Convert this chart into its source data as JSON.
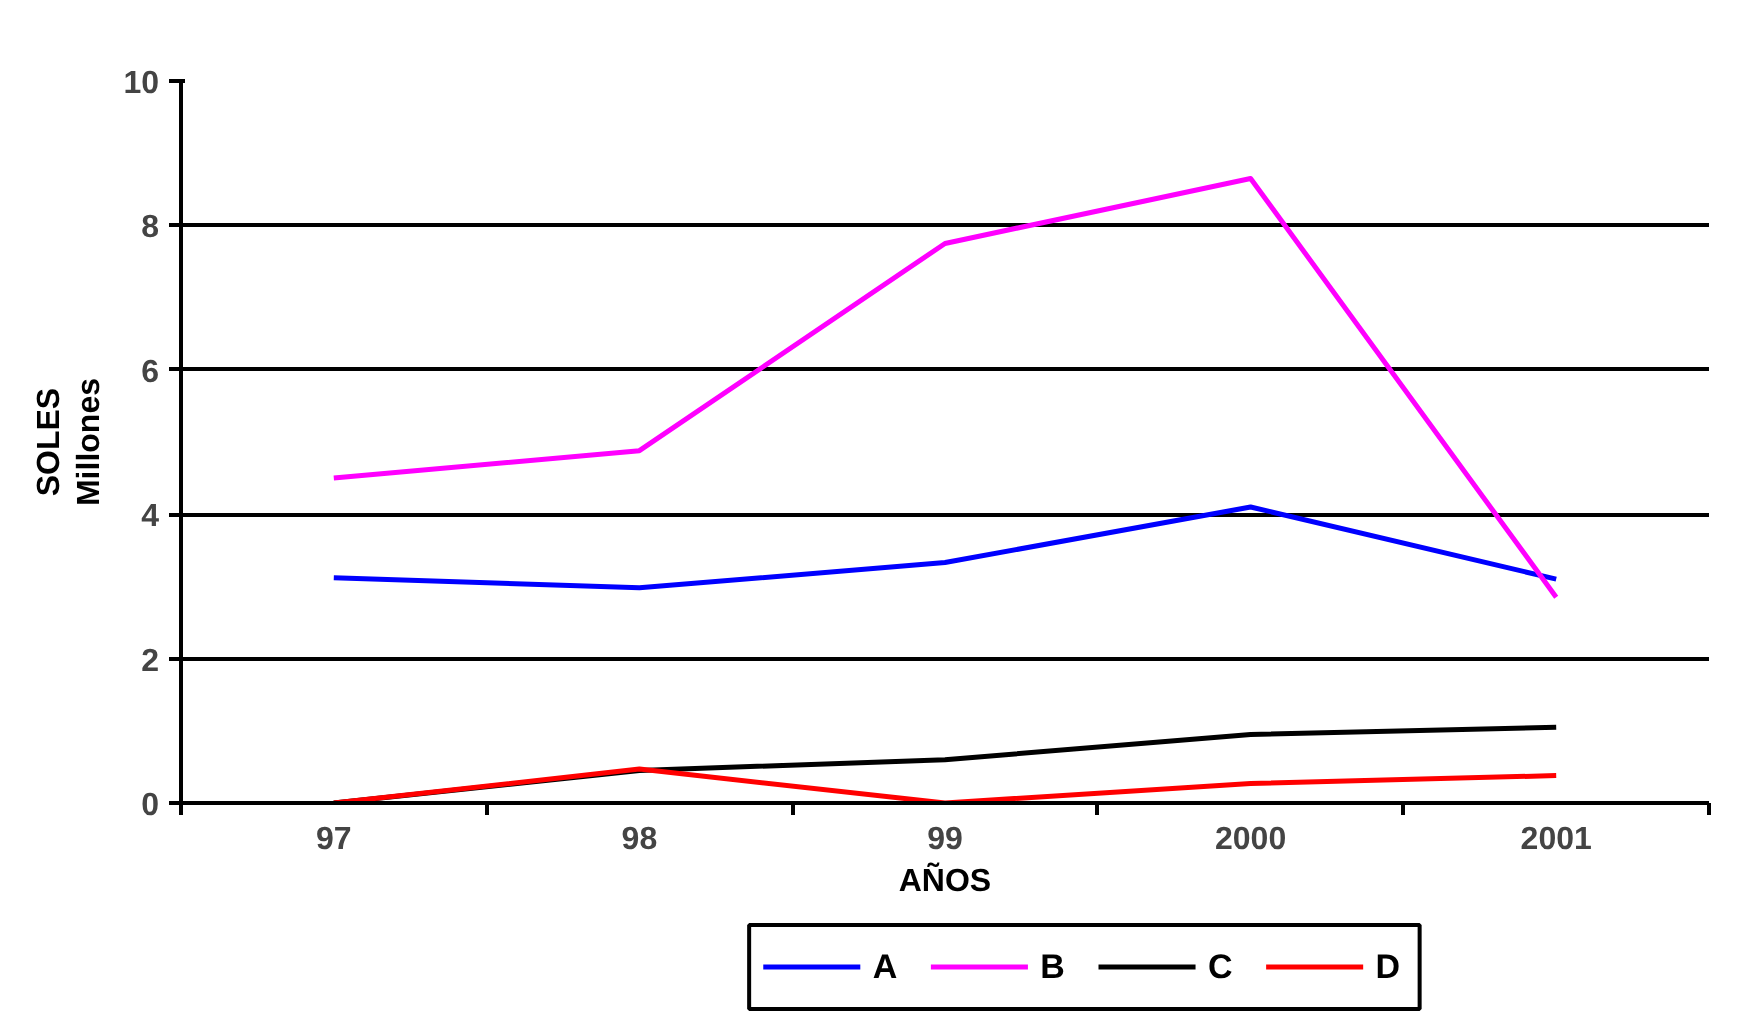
{
  "chart_data": {
    "type": "line",
    "xlabel": "AÑOS",
    "ylabel": "SOLES",
    "annotations": [
      "Millones"
    ],
    "categories": [
      "97",
      "98",
      "99",
      "2000",
      "2001"
    ],
    "series": [
      {
        "name": "A",
        "color": "#0000ff",
        "values": [
          3.12,
          2.98,
          3.33,
          4.1,
          3.1
        ]
      },
      {
        "name": "B",
        "color": "#ff00ff",
        "values": [
          4.5,
          4.88,
          7.75,
          8.65,
          2.85
        ]
      },
      {
        "name": "C",
        "color": "#000000",
        "values": [
          0,
          0.45,
          0.6,
          0.95,
          1.05
        ]
      },
      {
        "name": "D",
        "color": "#ff0000",
        "values": [
          0,
          0.47,
          0,
          0.27,
          0.38
        ]
      }
    ],
    "ylim": [
      0,
      10
    ],
    "yticks": [
      0,
      2,
      4,
      6,
      8,
      10
    ],
    "grid": "y",
    "legend": "bottom",
    "marker": "none",
    "line_style": "solid"
  }
}
